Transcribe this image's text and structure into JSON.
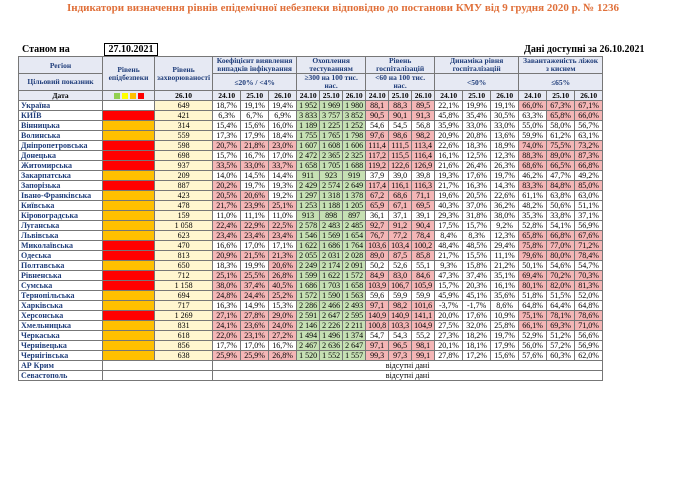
{
  "title": "Індикатори визначення рівнів епідемічної небезпеки відповідно до постанови КМУ від 9 грудня 2020 р. № 1236",
  "as_of_label": "Станом на",
  "as_of_date": "27.10.2021",
  "available_label": "Дані доступні за 26.10.2021",
  "headers": {
    "region": "Регіон",
    "target": "Цільовий показник",
    "level": "Рівень епідбезпеки",
    "incidence": "Рівень захворюваності",
    "detection": "Коефіцієнт виявлення випадків інфікування",
    "testing": "Охоплення тестуванням",
    "hospital": "Рівень госпіталізацій",
    "dynamics": "Динаміка рівня госпіталізацій",
    "beds": "Завантаженість ліжок з киснем",
    "date": "Дата"
  },
  "targets": {
    "incidence": "<75 на 100 тис. нас.",
    "detection": "≤20% / <4%",
    "testing": "≥300 на 100 тис. нас.",
    "hospital": "<60 на 100 тис. нас.",
    "dynamics": "<50%",
    "beds": "≤65%"
  },
  "dates": [
    "26.10",
    "24.10",
    "25.10",
    "26.10",
    "24.10",
    "25.10",
    "26.10",
    "24.10",
    "25.10",
    "26.10",
    "24.10",
    "25.10",
    "26.10",
    "24.10",
    "25.10",
    "26.10"
  ],
  "level_colors": {
    "green": "#92d050",
    "yellow": "#ffff00",
    "orange": "#ffc000",
    "red": "#ff0000"
  },
  "missing_text": "відсутні дані",
  "rows": [
    {
      "region": "Україна",
      "level": "",
      "incidence": "649",
      "det": [
        "18,7%",
        "19,1%",
        "19,4%"
      ],
      "test": [
        "1 952",
        "1 969",
        "1 980"
      ],
      "hosp": [
        "88,1",
        "88,3",
        "89,5"
      ],
      "dyn": [
        "22,1%",
        "19,9%",
        "19,1%"
      ],
      "beds": [
        "66,0%",
        "67,3%",
        "67,1%"
      ]
    },
    {
      "region": "КИЇВ",
      "level": "red",
      "incidence": "421",
      "det": [
        "6,3%",
        "6,7%",
        "6,9%"
      ],
      "test": [
        "3 833",
        "3 757",
        "3 852"
      ],
      "hosp": [
        "90,5",
        "90,1",
        "91,3"
      ],
      "dyn": [
        "45,8%",
        "35,4%",
        "30,5%"
      ],
      "beds": [
        "63,3%",
        "65,8%",
        "66,0%"
      ]
    },
    {
      "region": "Вінницька",
      "level": "orange",
      "incidence": "314",
      "det": [
        "15,4%",
        "15,6%",
        "16,0%"
      ],
      "test": [
        "1 189",
        "1 225",
        "1 252"
      ],
      "hosp": [
        "54,6",
        "54,5",
        "56,8"
      ],
      "dyn": [
        "35,9%",
        "33,0%",
        "33,0%"
      ],
      "beds": [
        "55,0%",
        "58,0%",
        "56,7%"
      ]
    },
    {
      "region": "Волинська",
      "level": "orange",
      "incidence": "559",
      "det": [
        "17,3%",
        "17,9%",
        "18,4%"
      ],
      "test": [
        "1 755",
        "1 765",
        "1 798"
      ],
      "hosp": [
        "97,6",
        "98,6",
        "98,2"
      ],
      "dyn": [
        "20,9%",
        "20,8%",
        "13,6%"
      ],
      "beds": [
        "59,9%",
        "61,2%",
        "63,1%"
      ]
    },
    {
      "region": "Дніпропетровська",
      "level": "red",
      "incidence": "598",
      "det": [
        "20,7%",
        "21,8%",
        "23,0%"
      ],
      "test": [
        "1 607",
        "1 608",
        "1 606"
      ],
      "hosp": [
        "111,4",
        "111,5",
        "113,4"
      ],
      "dyn": [
        "22,6%",
        "18,3%",
        "18,9%"
      ],
      "beds": [
        "74,0%",
        "75,5%",
        "73,2%"
      ]
    },
    {
      "region": "Донецька",
      "level": "red",
      "incidence": "698",
      "det": [
        "15,7%",
        "16,7%",
        "17,0%"
      ],
      "test": [
        "2 472",
        "2 365",
        "2 325"
      ],
      "hosp": [
        "117,2",
        "115,5",
        "116,4"
      ],
      "dyn": [
        "16,1%",
        "12,5%",
        "12,3%"
      ],
      "beds": [
        "88,3%",
        "89,0%",
        "87,3%"
      ]
    },
    {
      "region": "Житомирська",
      "level": "red",
      "incidence": "937",
      "det": [
        "33,5%",
        "33,0%",
        "33,7%"
      ],
      "test": [
        "1 658",
        "1 705",
        "1 688"
      ],
      "hosp": [
        "119,2",
        "122,6",
        "126,9"
      ],
      "dyn": [
        "21,6%",
        "26,4%",
        "26,3%"
      ],
      "beds": [
        "68,6%",
        "66,5%",
        "66,8%"
      ]
    },
    {
      "region": "Закарпатська",
      "level": "orange",
      "incidence": "209",
      "det": [
        "14,0%",
        "14,5%",
        "14,4%"
      ],
      "test": [
        "911",
        "923",
        "919"
      ],
      "hosp": [
        "37,9",
        "39,0",
        "39,8"
      ],
      "dyn": [
        "19,3%",
        "17,6%",
        "19,7%"
      ],
      "beds": [
        "46,2%",
        "47,7%",
        "49,2%"
      ]
    },
    {
      "region": "Запорізька",
      "level": "red",
      "incidence": "887",
      "det": [
        "20,2%",
        "19,7%",
        "19,3%"
      ],
      "test": [
        "2 429",
        "2 574",
        "2 649"
      ],
      "hosp": [
        "117,4",
        "116,1",
        "116,3"
      ],
      "dyn": [
        "21,7%",
        "16,3%",
        "14,3%"
      ],
      "beds": [
        "83,3%",
        "84,8%",
        "85,0%"
      ]
    },
    {
      "region": "Івано-Франківська",
      "level": "orange",
      "incidence": "423",
      "det": [
        "20,5%",
        "20,6%",
        "19,2%"
      ],
      "test": [
        "1 297",
        "1 318",
        "1 378"
      ],
      "hosp": [
        "67,2",
        "68,6",
        "71,1"
      ],
      "dyn": [
        "19,6%",
        "20,5%",
        "22,6%"
      ],
      "beds": [
        "61,1%",
        "63,8%",
        "63,0%"
      ]
    },
    {
      "region": "Київська",
      "level": "orange",
      "incidence": "478",
      "det": [
        "21,7%",
        "23,9%",
        "25,1%"
      ],
      "test": [
        "1 253",
        "1 188",
        "1 205"
      ],
      "hosp": [
        "65,9",
        "67,1",
        "69,5"
      ],
      "dyn": [
        "40,3%",
        "37,0%",
        "36,2%"
      ],
      "beds": [
        "48,2%",
        "50,6%",
        "51,1%"
      ]
    },
    {
      "region": "Кіровоградська",
      "level": "orange",
      "incidence": "159",
      "det": [
        "11,0%",
        "11,1%",
        "11,0%"
      ],
      "test": [
        "913",
        "898",
        "897"
      ],
      "hosp": [
        "36,1",
        "37,1",
        "39,1"
      ],
      "dyn": [
        "29,3%",
        "31,8%",
        "38,0%"
      ],
      "beds": [
        "35,3%",
        "33,8%",
        "37,1%"
      ]
    },
    {
      "region": "Луганська",
      "level": "orange",
      "incidence": "1 058",
      "det": [
        "22,4%",
        "22,9%",
        "22,5%"
      ],
      "test": [
        "2 578",
        "2 483",
        "2 485"
      ],
      "hosp": [
        "92,7",
        "91,2",
        "90,4"
      ],
      "dyn": [
        "17,5%",
        "15,7%",
        "9,2%"
      ],
      "beds": [
        "52,8%",
        "54,1%",
        "56,9%"
      ]
    },
    {
      "region": "Львівська",
      "level": "orange",
      "incidence": "623",
      "det": [
        "23,4%",
        "23,4%",
        "23,4%"
      ],
      "test": [
        "1 546",
        "1 569",
        "1 654"
      ],
      "hosp": [
        "76,7",
        "77,2",
        "78,4"
      ],
      "dyn": [
        "8,4%",
        "8,3%",
        "12,3%"
      ],
      "beds": [
        "65,8%",
        "66,8%",
        "67,6%"
      ]
    },
    {
      "region": "Миколаївська",
      "level": "red",
      "incidence": "470",
      "det": [
        "16,6%",
        "17,0%",
        "17,1%"
      ],
      "test": [
        "1 622",
        "1 686",
        "1 764"
      ],
      "hosp": [
        "103,6",
        "103,4",
        "100,2"
      ],
      "dyn": [
        "48,4%",
        "48,5%",
        "29,4%"
      ],
      "beds": [
        "75,8%",
        "77,0%",
        "71,2%"
      ]
    },
    {
      "region": "Одеська",
      "level": "red",
      "incidence": "813",
      "det": [
        "20,9%",
        "21,5%",
        "21,3%"
      ],
      "test": [
        "2 055",
        "2 031",
        "2 028"
      ],
      "hosp": [
        "89,0",
        "87,5",
        "85,8"
      ],
      "dyn": [
        "21,7%",
        "15,5%",
        "11,1%"
      ],
      "beds": [
        "79,6%",
        "80,0%",
        "78,4%"
      ]
    },
    {
      "region": "Полтавська",
      "level": "orange",
      "incidence": "650",
      "det": [
        "18,3%",
        "19,9%",
        "20,6%"
      ],
      "test": [
        "2 249",
        "2 174",
        "2 091"
      ],
      "hosp": [
        "50,2",
        "52,6",
        "55,1"
      ],
      "dyn": [
        "9,3%",
        "15,8%",
        "21,2%"
      ],
      "beds": [
        "50,1%",
        "54,6%",
        "54,7%"
      ]
    },
    {
      "region": "Рівненська",
      "level": "red",
      "incidence": "712",
      "det": [
        "25,1%",
        "25,5%",
        "26,8%"
      ],
      "test": [
        "1 599",
        "1 622",
        "1 572"
      ],
      "hosp": [
        "84,9",
        "83,0",
        "84,6"
      ],
      "dyn": [
        "47,3%",
        "37,4%",
        "35,1%"
      ],
      "beds": [
        "69,4%",
        "70,2%",
        "70,3%"
      ]
    },
    {
      "region": "Сумська",
      "level": "red",
      "incidence": "1 158",
      "det": [
        "38,0%",
        "37,4%",
        "40,5%"
      ],
      "test": [
        "1 686",
        "1 703",
        "1 658"
      ],
      "hosp": [
        "103,9",
        "106,7",
        "105,9"
      ],
      "dyn": [
        "15,7%",
        "20,3%",
        "16,1%"
      ],
      "beds": [
        "80,1%",
        "82,0%",
        "81,3%"
      ]
    },
    {
      "region": "Тернопільська",
      "level": "orange",
      "incidence": "694",
      "det": [
        "24,8%",
        "24,4%",
        "25,2%"
      ],
      "test": [
        "1 572",
        "1 590",
        "1 563"
      ],
      "hosp": [
        "59,6",
        "59,9",
        "59,9"
      ],
      "dyn": [
        "45,9%",
        "45,1%",
        "35,6%"
      ],
      "beds": [
        "51,8%",
        "51,5%",
        "52,0%"
      ]
    },
    {
      "region": "Харківська",
      "level": "orange",
      "incidence": "717",
      "det": [
        "16,3%",
        "14,9%",
        "15,3%"
      ],
      "test": [
        "2 286",
        "2 466",
        "2 493"
      ],
      "hosp": [
        "97,1",
        "98,2",
        "101,6"
      ],
      "dyn": [
        "-3,7%",
        "-1,7%",
        "8,6%"
      ],
      "beds": [
        "64,8%",
        "64,4%",
        "64,8%"
      ]
    },
    {
      "region": "Херсонська",
      "level": "red",
      "incidence": "1 269",
      "det": [
        "27,1%",
        "27,8%",
        "29,0%"
      ],
      "test": [
        "2 591",
        "2 647",
        "2 595"
      ],
      "hosp": [
        "140,9",
        "140,9",
        "141,1"
      ],
      "dyn": [
        "20,0%",
        "17,6%",
        "10,9%"
      ],
      "beds": [
        "75,1%",
        "78,1%",
        "78,6%"
      ]
    },
    {
      "region": "Хмельницька",
      "level": "orange",
      "incidence": "831",
      "det": [
        "24,1%",
        "23,6%",
        "24,0%"
      ],
      "test": [
        "2 146",
        "2 226",
        "2 211"
      ],
      "hosp": [
        "100,8",
        "103,3",
        "104,9"
      ],
      "dyn": [
        "27,5%",
        "32,0%",
        "25,8%"
      ],
      "beds": [
        "66,1%",
        "69,3%",
        "71,0%"
      ]
    },
    {
      "region": "Черкаська",
      "level": "orange",
      "incidence": "618",
      "det": [
        "22,0%",
        "23,1%",
        "27,2%"
      ],
      "test": [
        "1 494",
        "1 496",
        "1 374"
      ],
      "hosp": [
        "54,7",
        "54,3",
        "55,2"
      ],
      "dyn": [
        "27,3%",
        "18,2%",
        "19,7%"
      ],
      "beds": [
        "52,9%",
        "51,2%",
        "56,6%"
      ]
    },
    {
      "region": "Чернівецька",
      "level": "orange",
      "incidence": "856",
      "det": [
        "17,7%",
        "17,0%",
        "16,7%"
      ],
      "test": [
        "2 467",
        "2 636",
        "2 647"
      ],
      "hosp": [
        "97,1",
        "96,5",
        "98,1"
      ],
      "dyn": [
        "20,1%",
        "18,1%",
        "17,9%"
      ],
      "beds": [
        "56,0%",
        "57,2%",
        "56,9%"
      ]
    },
    {
      "region": "Чернігівська",
      "level": "orange",
      "incidence": "638",
      "det": [
        "25,9%",
        "25,9%",
        "26,8%"
      ],
      "test": [
        "1 520",
        "1 552",
        "1 557"
      ],
      "hosp": [
        "99,3",
        "97,3",
        "99,1"
      ],
      "dyn": [
        "27,8%",
        "17,2%",
        "15,6%"
      ],
      "beds": [
        "57,6%",
        "60,3%",
        "62,0%"
      ]
    }
  ],
  "missing_rows": [
    "АР Крим",
    "Севастополь"
  ]
}
